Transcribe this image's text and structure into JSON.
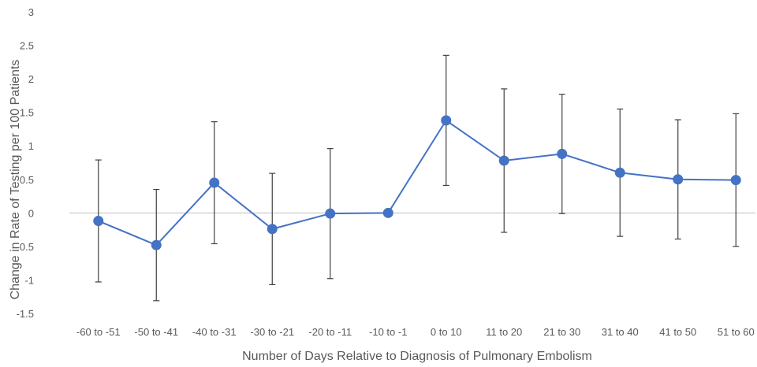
{
  "chart_data": {
    "type": "line",
    "title": "",
    "xlabel": "Number of Days Relative to Diagnosis of Pulmonary Embolism",
    "ylabel": "Change in Rate of Testing per 100 Patients",
    "categories": [
      "-60 to -51",
      "-50 to -41",
      "-40 to -31",
      "-30 to -21",
      "-20 to -11",
      "-10 to -1",
      "0 to 10",
      "11 to 20",
      "21 to 30",
      "31 to 40",
      "41 to 50",
      "51 to 60"
    ],
    "series": [
      {
        "values": [
          -0.12,
          -0.48,
          0.45,
          -0.24,
          -0.01,
          0.0,
          1.38,
          0.78,
          0.88,
          0.6,
          0.5,
          0.49
        ],
        "error_low": [
          -1.03,
          -1.31,
          -0.46,
          -1.07,
          -0.98,
          0.0,
          0.41,
          -0.29,
          -0.01,
          -0.35,
          -0.39,
          -0.5
        ],
        "error_high": [
          0.79,
          0.35,
          1.36,
          0.59,
          0.96,
          0.0,
          2.35,
          1.85,
          1.77,
          1.55,
          1.39,
          1.48
        ],
        "color": "#4472C4"
      }
    ],
    "ylim": [
      -1.5,
      3
    ],
    "yticks": [
      "-1.5",
      "-1",
      "-0.5",
      "0",
      "0.5",
      "1",
      "1.5",
      "2",
      "2.5",
      "3"
    ],
    "grid": false,
    "zero_line_color": "#BFBFBF",
    "error_bar_color": "#404040"
  }
}
